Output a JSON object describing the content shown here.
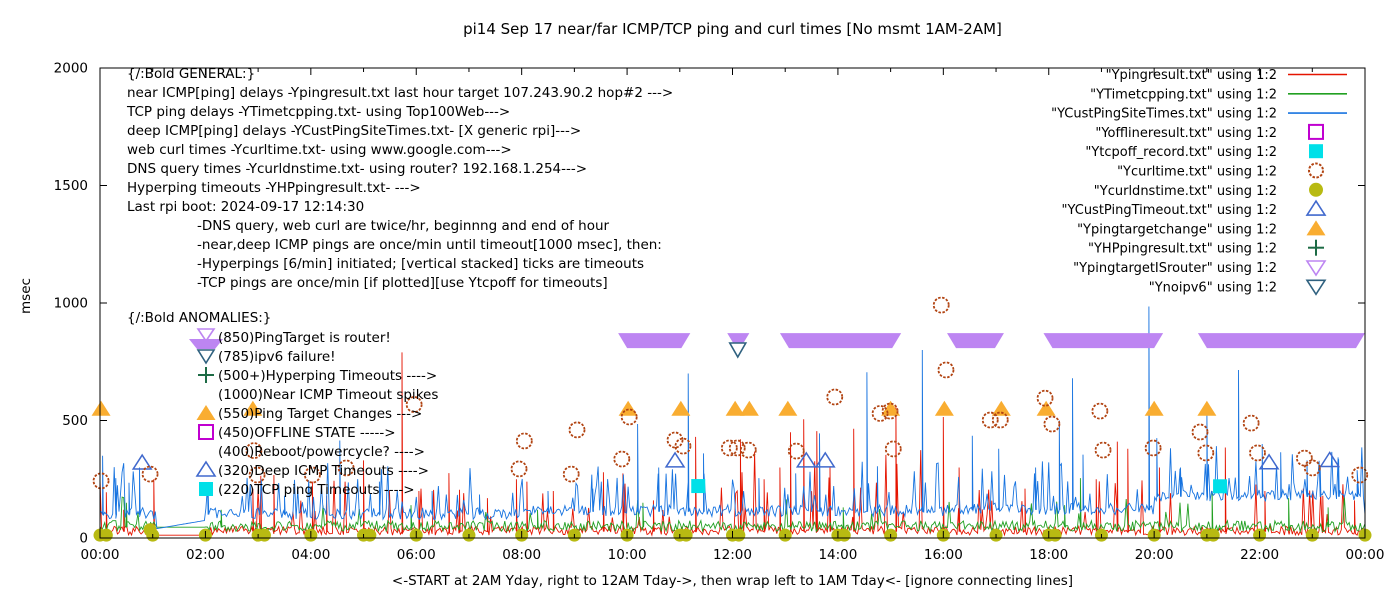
{
  "chart_data": {
    "type": "line",
    "title": "pi14 Sep 17  near/far ICMP/TCP ping and curl times [No msmt 1AM-2AM]",
    "ylabel": "msec",
    "xlabel": "<-START at 2AM Yday, right to 12AM Tday->, then wrap left to 1AM Tday<- [ignore connecting lines]",
    "ylim": [
      0,
      2000
    ],
    "y_ticks": [
      0,
      500,
      1000,
      1500,
      2000
    ],
    "x_range_hours": [
      0,
      24
    ],
    "x_tick_labels": [
      "00:00",
      "02:00",
      "04:00",
      "06:00",
      "08:00",
      "10:00",
      "12:00",
      "14:00",
      "16:00",
      "18:00",
      "20:00",
      "22:00",
      "00:00"
    ],
    "grid": false,
    "legend_position": "top-right-inside",
    "colors": {
      "red": "#e51400",
      "green": "#22a022",
      "blue": "#1874e0",
      "magenta": "#c000d0",
      "cyan": "#00e0e8",
      "sienna": "#b24412",
      "olive": "#b8ba12",
      "royal": "#4169cd",
      "orange": "#f9ad31",
      "dkgreen": "#1d6b45",
      "violet": "#bd85f2",
      "navy": "#2f617f",
      "axis": "#000000"
    },
    "legend": [
      {
        "label": "\"Ypingresult.txt\" using 1:2",
        "glyph": "line",
        "color_key": "red"
      },
      {
        "label": "\"YTimetcpping.txt\" using 1:2",
        "glyph": "line",
        "color_key": "green"
      },
      {
        "label": "\"YCustPingSiteTimes.txt\" using 1:2",
        "glyph": "line",
        "color_key": "blue"
      },
      {
        "label": "\"Yofflineresult.txt\" using 1:2",
        "glyph": "square-open",
        "color_key": "magenta"
      },
      {
        "label": "\"Ytcpoff_record.txt\" using 1:2",
        "glyph": "square-filled",
        "color_key": "cyan"
      },
      {
        "label": "\"Ycurltime.txt\" using 1:2",
        "glyph": "circle-open",
        "color_key": "sienna"
      },
      {
        "label": "\"Ycurldnstime.txt\" using 1:2",
        "glyph": "circle-filled",
        "color_key": "olive"
      },
      {
        "label": "\"YCustPingTimeout.txt\" using 1:2",
        "glyph": "triangle-open",
        "color_key": "royal"
      },
      {
        "label": "\"Ypingtargetchange\" using 1:2",
        "glyph": "triangle-filled",
        "color_key": "orange"
      },
      {
        "label": "\"YHPpingresult.txt\" using 1:2",
        "glyph": "plus",
        "color_key": "dkgreen"
      },
      {
        "label": "\"YpingtargetISrouter\" using 1:2",
        "glyph": "tridown-open",
        "color_key": "violet"
      },
      {
        "label": "\"Ynoipv6\" using 1:2",
        "glyph": "tridown-open",
        "color_key": "navy"
      }
    ],
    "annotations": {
      "general": [
        "{/:Bold GENERAL:}",
        "near ICMP[ping] delays -Ypingresult.txt last hour target 107.243.90.2 hop#2 --->",
        "TCP ping delays -YTimetcpping.txt- using Top100Web--->",
        "deep ICMP[ping] delays -YCustPingSiteTimes.txt- [X generic rpi]--->",
        "web curl times -Ycurltime.txt- using www.google.com--->",
        "DNS query times -Ycurldnstime.txt- using router? 192.168.1.254--->",
        "Hyperping timeouts -YHPpingresult.txt- --->",
        "Last rpi boot: 2024-09-17 12:14:30"
      ],
      "general_indent": [
        "-DNS query, web curl are twice/hr, beginnng and end of hour",
        "-near,deep ICMP pings are once/min until timeout[1000 msec], then:",
        " -Hyperpings [6/min] initiated; [vertical stacked] ticks are timeouts",
        "-TCP pings are once/min [if plotted][use Ytcpoff for timeouts]"
      ],
      "anomalies_header": "{/:Bold ANOMALIES:}",
      "anomalies": [
        {
          "glyph": "band-violet",
          "text": "(850)PingTarget is router!"
        },
        {
          "glyph": "tridown-navy",
          "text": "(785)ipv6 failure!"
        },
        {
          "glyph": "plus-dkgreen",
          "text": "(500+)Hyperping Timeouts ---->"
        },
        {
          "glyph": "none",
          "text": "(1000)Near ICMP Timeout spikes"
        },
        {
          "glyph": "tri-orange",
          "text": "(550)Ping Target Changes --->"
        },
        {
          "glyph": "square-magenta",
          "text": "(450)OFFLINE STATE ----->"
        },
        {
          "glyph": "none",
          "text": "(400)Reboot/powercycle? ---->"
        },
        {
          "glyph": "tri-royal",
          "text": "(320)Deep ICMP Timeouts ---->"
        },
        {
          "glyph": "square-cyan",
          "text": "(220)TCP ping Timeouts ---->"
        }
      ]
    },
    "router_bands": {
      "value": 850,
      "segments_hours": [
        [
          9.83,
          11.2
        ],
        [
          11.9,
          12.32
        ],
        [
          12.9,
          15.2
        ],
        [
          16.07,
          17.15
        ],
        [
          17.9,
          20.17
        ],
        [
          20.83,
          24.0
        ]
      ]
    },
    "ping_target_changes": {
      "value": 550,
      "hours": [
        0.02,
        2.9,
        10.02,
        11.02,
        12.05,
        12.32,
        13.05,
        15.0,
        16.02,
        17.1,
        17.95,
        20.0,
        21.0
      ]
    },
    "deep_icmp_timeouts": [
      [
        0.8,
        319
      ],
      [
        10.91,
        328
      ],
      [
        13.4,
        328
      ],
      [
        13.76,
        328
      ],
      [
        22.18,
        320
      ],
      [
        23.33,
        330
      ]
    ],
    "tcp_ping_timeouts": [
      [
        11.35,
        221
      ],
      [
        21.25,
        220
      ]
    ],
    "ipv6_failure": [
      [
        12.1,
        800
      ]
    ],
    "curl_times": [
      [
        0.02,
        243
      ],
      [
        0.95,
        272
      ],
      [
        2.92,
        372
      ],
      [
        2.98,
        268
      ],
      [
        4.03,
        268
      ],
      [
        4.67,
        298
      ],
      [
        5.96,
        568
      ],
      [
        7.95,
        294
      ],
      [
        8.05,
        413
      ],
      [
        8.94,
        272
      ],
      [
        9.05,
        460
      ],
      [
        9.9,
        336
      ],
      [
        10.04,
        515
      ],
      [
        10.91,
        417
      ],
      [
        11.06,
        391
      ],
      [
        11.94,
        383
      ],
      [
        12.09,
        383
      ],
      [
        12.3,
        374
      ],
      [
        13.21,
        370
      ],
      [
        13.94,
        600
      ],
      [
        14.8,
        530
      ],
      [
        14.99,
        540
      ],
      [
        15.05,
        379
      ],
      [
        15.96,
        991
      ],
      [
        16.05,
        715
      ],
      [
        16.89,
        502
      ],
      [
        17.08,
        502
      ],
      [
        17.93,
        595
      ],
      [
        18.06,
        485
      ],
      [
        18.97,
        540
      ],
      [
        19.03,
        374
      ],
      [
        19.98,
        383
      ],
      [
        20.87,
        451
      ],
      [
        20.98,
        362
      ],
      [
        21.84,
        489
      ],
      [
        21.96,
        362
      ],
      [
        22.85,
        340
      ],
      [
        23.0,
        298
      ],
      [
        23.9,
        268
      ]
    ],
    "dns_dots": {
      "value": 12,
      "hourly": true,
      "double_hours": [
        0,
        3,
        5,
        11,
        12,
        14,
        18,
        21
      ],
      "double_offset_hours": 0.12,
      "extra": [
        [
          0.95,
          35
        ]
      ]
    },
    "series_noise": {
      "seed": 7,
      "step_hours": 0.03,
      "no_msmt_window_hours": [
        1.08,
        2.0
      ],
      "red": {
        "base": [
          12,
          50
        ],
        "spike_prob": 0.07,
        "spike_prob_mid": 0.13,
        "mid_hours": [
          10,
          17.5
        ],
        "spikes": [
          [
            0.12,
            195
          ],
          [
            0.45,
            120
          ],
          [
            1.02,
            250
          ],
          [
            2.9,
            210
          ],
          [
            3.05,
            265
          ],
          [
            3.3,
            268
          ],
          [
            4.03,
            240
          ],
          [
            4.3,
            180
          ],
          [
            5.0,
            330
          ],
          [
            5.73,
            790
          ],
          [
            6.05,
            200
          ],
          [
            6.62,
            276
          ],
          [
            6.82,
            205
          ],
          [
            7.35,
            170
          ],
          [
            7.9,
            250
          ],
          [
            8.1,
            240
          ],
          [
            8.6,
            200
          ],
          [
            9.55,
            280
          ],
          [
            9.92,
            275
          ],
          [
            10.5,
            160
          ],
          [
            11.3,
            430
          ],
          [
            12.15,
            420
          ],
          [
            12.6,
            250
          ],
          [
            12.9,
            300
          ],
          [
            13.1,
            450
          ],
          [
            13.35,
            505
          ],
          [
            13.6,
            455
          ],
          [
            13.85,
            300
          ],
          [
            14.3,
            465
          ],
          [
            15.1,
            560
          ],
          [
            16.0,
            515
          ],
          [
            16.3,
            300
          ],
          [
            17.55,
            210
          ],
          [
            18.9,
            250
          ],
          [
            19.3,
            410
          ],
          [
            19.5,
            380
          ],
          [
            20.1,
            300
          ],
          [
            21.35,
            385
          ],
          [
            22.1,
            200
          ],
          [
            23.2,
            180
          ],
          [
            23.8,
            160
          ]
        ]
      },
      "green": {
        "base": [
          28,
          74
        ],
        "spike_prob": 0.02,
        "spikes": [
          [
            0.5,
            150
          ],
          [
            2.3,
            120
          ],
          [
            5.9,
            140
          ],
          [
            8.3,
            120
          ],
          [
            10.3,
            150
          ],
          [
            14.1,
            130
          ],
          [
            18.3,
            140
          ],
          [
            18.6,
            255
          ],
          [
            21.1,
            200
          ],
          [
            22.55,
            170
          ],
          [
            23.3,
            130
          ]
        ]
      },
      "blue": {
        "baseline_segments": [
          [
            0,
            8,
            92
          ],
          [
            8,
            16,
            104
          ],
          [
            16,
            20,
            112
          ],
          [
            20,
            24,
            168
          ]
        ],
        "spike_prob": 0.14,
        "spikes": [
          [
            0.05,
            350
          ],
          [
            0.3,
            255
          ],
          [
            0.55,
            235
          ],
          [
            0.75,
            300
          ],
          [
            2.05,
            205
          ],
          [
            3.5,
            180
          ],
          [
            4.55,
            415
          ],
          [
            5.3,
            240
          ],
          [
            6.3,
            200
          ],
          [
            7.2,
            185
          ],
          [
            8.5,
            200
          ],
          [
            9.35,
            210
          ],
          [
            10.2,
            485
          ],
          [
            10.6,
            300
          ],
          [
            11.16,
            700
          ],
          [
            11.45,
            360
          ],
          [
            12.5,
            255
          ],
          [
            13.2,
            275
          ],
          [
            13.65,
            445
          ],
          [
            14.55,
            705
          ],
          [
            14.75,
            305
          ],
          [
            15.6,
            800
          ],
          [
            16.55,
            435
          ],
          [
            17.05,
            380
          ],
          [
            17.75,
            300
          ],
          [
            18.2,
            500
          ],
          [
            18.45,
            680
          ],
          [
            18.65,
            355
          ],
          [
            19.9,
            985
          ],
          [
            20.05,
            425
          ],
          [
            20.5,
            300
          ],
          [
            21.0,
            530
          ],
          [
            21.6,
            715
          ],
          [
            22.05,
            400
          ],
          [
            22.4,
            365
          ],
          [
            22.9,
            330
          ],
          [
            23.15,
            305
          ],
          [
            23.5,
            335
          ],
          [
            23.85,
            230
          ]
        ]
      }
    }
  }
}
